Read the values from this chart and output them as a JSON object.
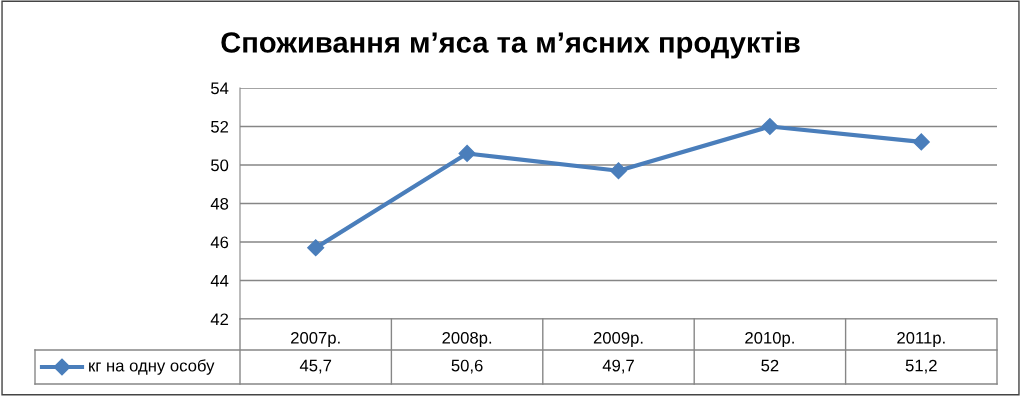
{
  "chart_data": {
    "type": "line",
    "title": "Споживання м’яса та м’ясних продуктів",
    "categories": [
      "2007р.",
      "2008р.",
      "2009р.",
      "2010р.",
      "2011р."
    ],
    "series": [
      {
        "name": "кг на одну особу",
        "color": "#4a7ebb",
        "values": [
          45.7,
          50.6,
          49.7,
          52,
          51.2
        ],
        "value_labels": [
          "45,7",
          "50,6",
          "49,7",
          "52",
          "51,2"
        ]
      }
    ],
    "ylim": [
      42,
      54
    ],
    "yticks": [
      42,
      44,
      46,
      48,
      50,
      52,
      54
    ],
    "grid": "y",
    "legend": "bottom",
    "marker": "diamond",
    "line_style": "solid"
  }
}
